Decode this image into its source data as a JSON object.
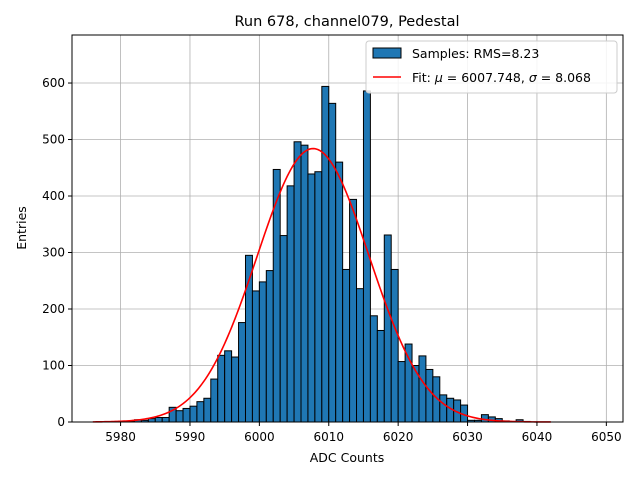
{
  "chart_data": {
    "type": "bar",
    "title": "Run 678, channel079, Pedestal",
    "xlabel": "ADC Counts",
    "ylabel": "Entries",
    "xlim": [
      5973.0,
      6052.4
    ],
    "ylim": [
      0,
      685
    ],
    "grid": true,
    "legend_position": "top-right",
    "x_ticks": [
      5980,
      5990,
      6000,
      6010,
      6020,
      6030,
      6040,
      6050
    ],
    "y_ticks": [
      0,
      100,
      200,
      300,
      400,
      500,
      600
    ],
    "bin_width": 1,
    "series": [
      {
        "name": "Samples: RMS=8.23",
        "kind": "histogram",
        "color": "#1f77b4",
        "edge_color": "#000000",
        "bins": [
          [
            5980,
            1
          ],
          [
            5981,
            1
          ],
          [
            5982,
            4
          ],
          [
            5983,
            3
          ],
          [
            5984,
            6
          ],
          [
            5985,
            8
          ],
          [
            5986,
            8
          ],
          [
            5987,
            26
          ],
          [
            5988,
            20
          ],
          [
            5989,
            24
          ],
          [
            5990,
            28
          ],
          [
            5991,
            36
          ],
          [
            5992,
            42
          ],
          [
            5993,
            76
          ],
          [
            5994,
            118
          ],
          [
            5995,
            126
          ],
          [
            5996,
            115
          ],
          [
            5997,
            176
          ],
          [
            5998,
            295
          ],
          [
            5999,
            232
          ],
          [
            6000,
            248
          ],
          [
            6001,
            268
          ],
          [
            6002,
            447
          ],
          [
            6003,
            330
          ],
          [
            6004,
            418
          ],
          [
            6005,
            496
          ],
          [
            6006,
            490
          ],
          [
            6007,
            439
          ],
          [
            6008,
            443
          ],
          [
            6009,
            594
          ],
          [
            6010,
            564
          ],
          [
            6011,
            460
          ],
          [
            6012,
            270
          ],
          [
            6013,
            394
          ],
          [
            6014,
            236
          ],
          [
            6015,
            586
          ],
          [
            6016,
            188
          ],
          [
            6017,
            162
          ],
          [
            6018,
            331
          ],
          [
            6019,
            270
          ],
          [
            6020,
            107
          ],
          [
            6021,
            138
          ],
          [
            6022,
            100
          ],
          [
            6023,
            117
          ],
          [
            6024,
            93
          ],
          [
            6025,
            80
          ],
          [
            6026,
            48
          ],
          [
            6027,
            42
          ],
          [
            6028,
            39
          ],
          [
            6029,
            30
          ],
          [
            6030,
            3
          ],
          [
            6031,
            3
          ],
          [
            6032,
            13
          ],
          [
            6033,
            9
          ],
          [
            6034,
            6
          ],
          [
            6035,
            2
          ],
          [
            6036,
            1
          ],
          [
            6037,
            4
          ],
          [
            6038,
            1
          ]
        ]
      },
      {
        "name": "Fit: μ = 6007.748, σ = 8.068",
        "name_parts": {
          "prefix": "Fit: ",
          "mu_symbol": "μ",
          "mid": " = 6007.748, ",
          "sigma_symbol": "σ",
          "suffix": " = 8.068"
        },
        "kind": "gaussian",
        "color": "#ff0000",
        "mu": 6007.748,
        "sigma": 8.068,
        "amplitude": 484,
        "x_range": [
          5976,
          6042
        ]
      }
    ]
  }
}
